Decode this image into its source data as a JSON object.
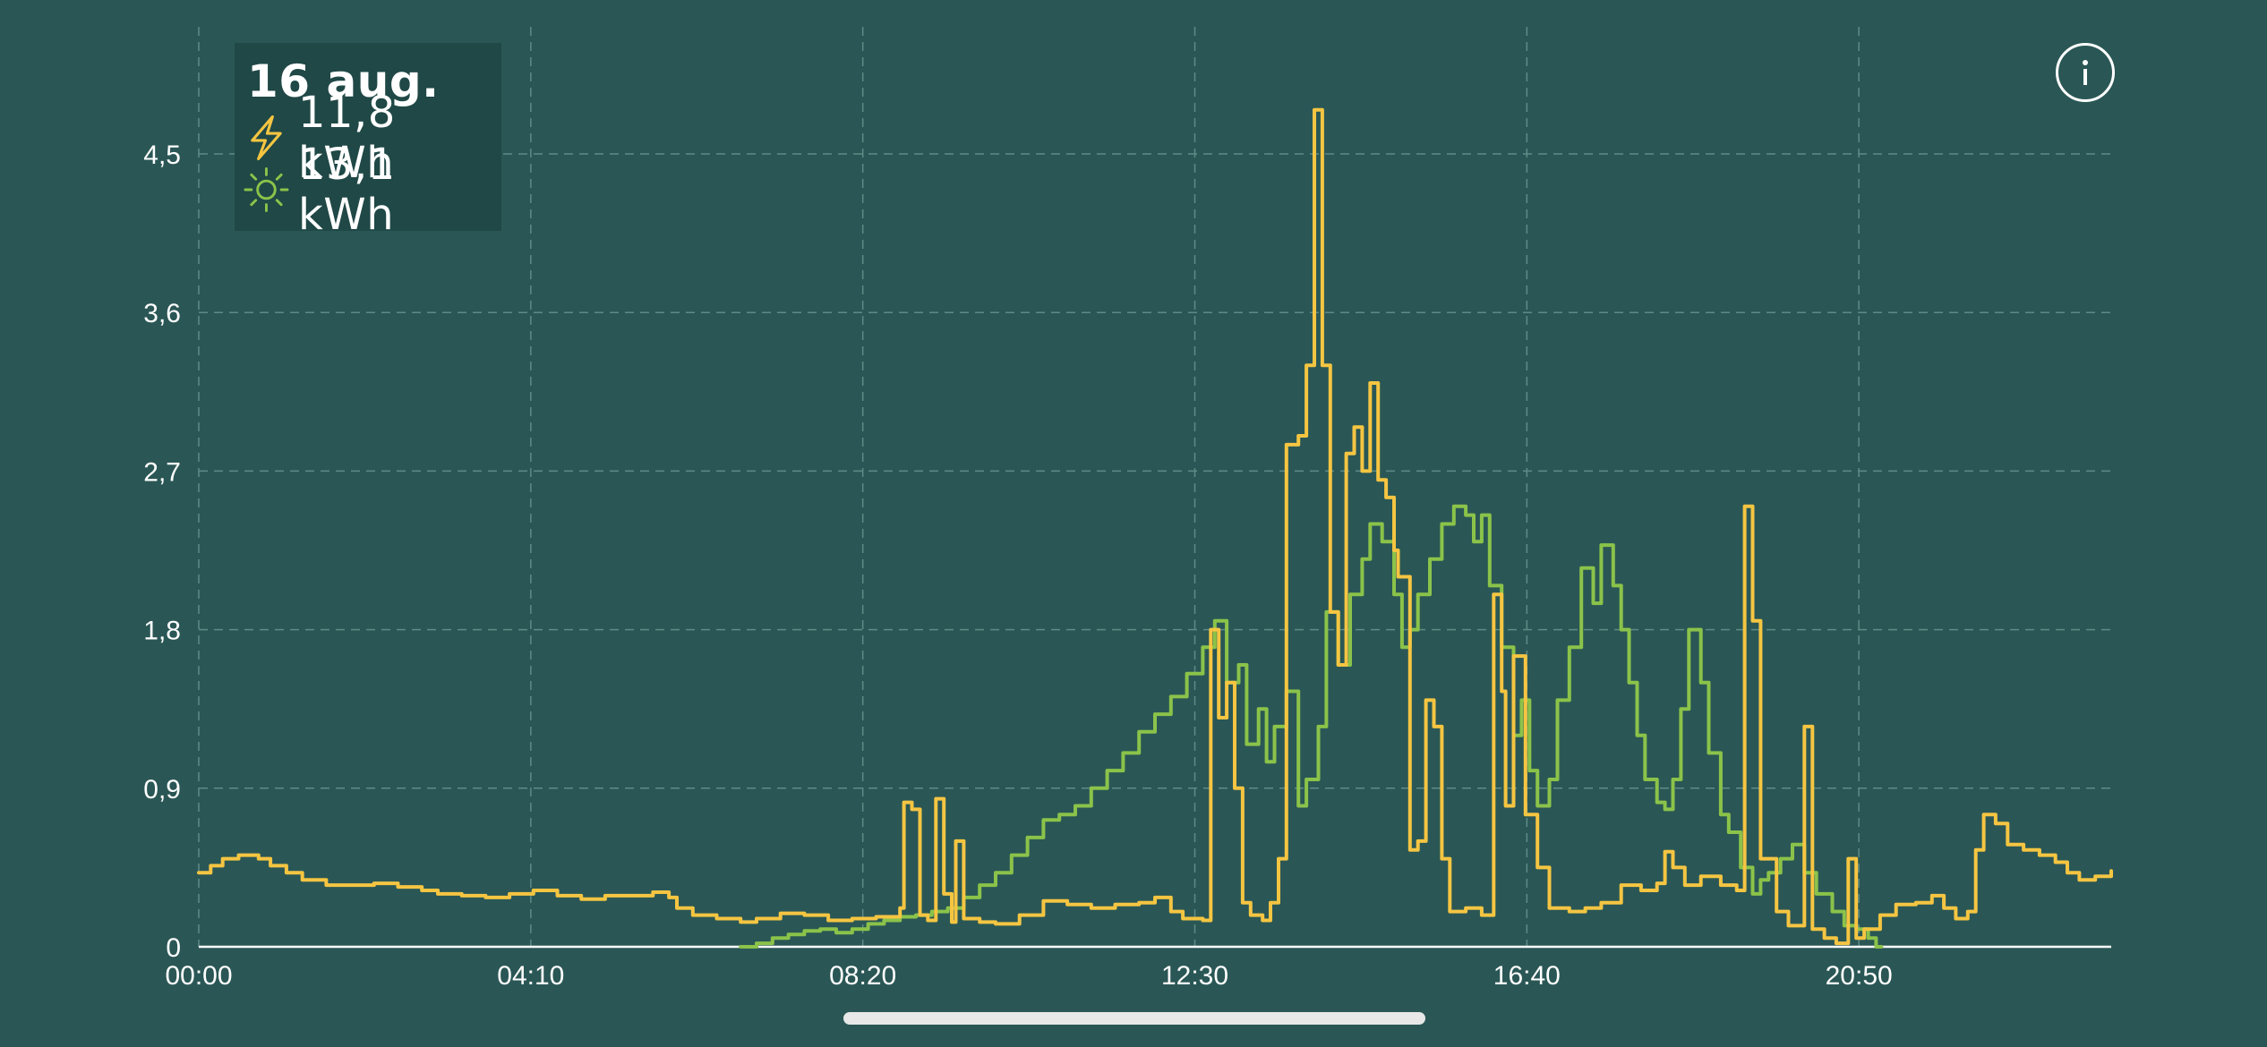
{
  "legend": {
    "date": "16 aug.",
    "consumption_value": "11,8 kWh",
    "production_value": "13,1 kWh",
    "consumption_icon": "lightning-bolt-icon",
    "production_icon": "sun-icon"
  },
  "info_button": {
    "icon": "info-icon",
    "glyph": "i"
  },
  "colors": {
    "background": "#2a5755",
    "legend_background": "#1f4846",
    "consumption": "#f5c542",
    "production": "#8bc34a",
    "grid": "#5f8a86",
    "text": "#ffffff"
  },
  "chart_data": {
    "type": "line",
    "step": true,
    "x_unit": "time of day (hours)",
    "y_unit": "kW",
    "xlim": [
      0,
      24
    ],
    "ylim": [
      0,
      5.2
    ],
    "x_ticks": [
      0,
      4.1667,
      8.3333,
      12.5,
      16.6667,
      20.8333
    ],
    "x_tick_labels": [
      "00:00",
      "04:10",
      "08:20",
      "12:30",
      "16:40",
      "20:50"
    ],
    "y_ticks": [
      0,
      0.9,
      1.8,
      2.7,
      3.6,
      4.5
    ],
    "y_tick_labels": [
      "0",
      "0,9",
      "1,8",
      "2,7",
      "3,6",
      "4,5"
    ],
    "grid": true,
    "legend_position": "top-left",
    "series": [
      {
        "key": "consumption",
        "color": "#f5c542",
        "points": [
          [
            0.0,
            0.42
          ],
          [
            0.15,
            0.46
          ],
          [
            0.3,
            0.5
          ],
          [
            0.5,
            0.52
          ],
          [
            0.75,
            0.5
          ],
          [
            0.9,
            0.46
          ],
          [
            1.1,
            0.42
          ],
          [
            1.3,
            0.38
          ],
          [
            1.6,
            0.35
          ],
          [
            1.9,
            0.35
          ],
          [
            2.2,
            0.36
          ],
          [
            2.5,
            0.34
          ],
          [
            2.8,
            0.32
          ],
          [
            3.0,
            0.3
          ],
          [
            3.3,
            0.29
          ],
          [
            3.6,
            0.28
          ],
          [
            3.9,
            0.3
          ],
          [
            4.2,
            0.32
          ],
          [
            4.5,
            0.29
          ],
          [
            4.8,
            0.27
          ],
          [
            5.1,
            0.29
          ],
          [
            5.4,
            0.29
          ],
          [
            5.7,
            0.31
          ],
          [
            5.9,
            0.28
          ],
          [
            6.0,
            0.22
          ],
          [
            6.2,
            0.18
          ],
          [
            6.5,
            0.16
          ],
          [
            6.8,
            0.14
          ],
          [
            7.0,
            0.16
          ],
          [
            7.3,
            0.19
          ],
          [
            7.6,
            0.18
          ],
          [
            7.9,
            0.15
          ],
          [
            8.2,
            0.16
          ],
          [
            8.5,
            0.17
          ],
          [
            8.8,
            0.22
          ],
          [
            8.85,
            0.82
          ],
          [
            8.95,
            0.78
          ],
          [
            9.05,
            0.18
          ],
          [
            9.15,
            0.15
          ],
          [
            9.25,
            0.84
          ],
          [
            9.35,
            0.3
          ],
          [
            9.45,
            0.14
          ],
          [
            9.5,
            0.6
          ],
          [
            9.6,
            0.16
          ],
          [
            9.8,
            0.14
          ],
          [
            10.0,
            0.13
          ],
          [
            10.3,
            0.18
          ],
          [
            10.6,
            0.26
          ],
          [
            10.9,
            0.24
          ],
          [
            11.2,
            0.22
          ],
          [
            11.5,
            0.24
          ],
          [
            11.8,
            0.25
          ],
          [
            12.0,
            0.28
          ],
          [
            12.2,
            0.2
          ],
          [
            12.35,
            0.16
          ],
          [
            12.6,
            0.15
          ],
          [
            12.7,
            1.8
          ],
          [
            12.8,
            1.3
          ],
          [
            12.9,
            1.5
          ],
          [
            13.0,
            0.9
          ],
          [
            13.1,
            0.25
          ],
          [
            13.2,
            0.18
          ],
          [
            13.35,
            0.15
          ],
          [
            13.45,
            0.25
          ],
          [
            13.55,
            0.5
          ],
          [
            13.65,
            2.85
          ],
          [
            13.8,
            2.9
          ],
          [
            13.9,
            3.3
          ],
          [
            14.0,
            4.75
          ],
          [
            14.1,
            3.3
          ],
          [
            14.2,
            1.9
          ],
          [
            14.3,
            1.6
          ],
          [
            14.4,
            2.8
          ],
          [
            14.5,
            2.95
          ],
          [
            14.6,
            2.7
          ],
          [
            14.7,
            3.2
          ],
          [
            14.8,
            2.65
          ],
          [
            14.9,
            2.55
          ],
          [
            15.0,
            2.25
          ],
          [
            15.05,
            2.1
          ],
          [
            15.2,
            0.55
          ],
          [
            15.3,
            0.6
          ],
          [
            15.4,
            1.4
          ],
          [
            15.5,
            1.25
          ],
          [
            15.6,
            0.5
          ],
          [
            15.7,
            0.2
          ],
          [
            15.9,
            0.22
          ],
          [
            16.1,
            0.18
          ],
          [
            16.25,
            2.0
          ],
          [
            16.35,
            1.45
          ],
          [
            16.4,
            0.8
          ],
          [
            16.5,
            1.65
          ],
          [
            16.65,
            0.75
          ],
          [
            16.8,
            0.45
          ],
          [
            16.95,
            0.22
          ],
          [
            17.2,
            0.2
          ],
          [
            17.4,
            0.22
          ],
          [
            17.6,
            0.25
          ],
          [
            17.85,
            0.35
          ],
          [
            18.1,
            0.32
          ],
          [
            18.3,
            0.36
          ],
          [
            18.4,
            0.54
          ],
          [
            18.5,
            0.45
          ],
          [
            18.65,
            0.35
          ],
          [
            18.85,
            0.4
          ],
          [
            19.1,
            0.35
          ],
          [
            19.3,
            0.32
          ],
          [
            19.4,
            2.5
          ],
          [
            19.5,
            1.85
          ],
          [
            19.6,
            0.5
          ],
          [
            19.8,
            0.2
          ],
          [
            19.95,
            0.12
          ],
          [
            20.15,
            1.25
          ],
          [
            20.25,
            0.1
          ],
          [
            20.4,
            0.05
          ],
          [
            20.55,
            0.02
          ],
          [
            20.7,
            0.5
          ],
          [
            20.8,
            0.05
          ],
          [
            20.9,
            0.1
          ],
          [
            21.1,
            0.18
          ],
          [
            21.3,
            0.24
          ],
          [
            21.55,
            0.25
          ],
          [
            21.75,
            0.29
          ],
          [
            21.9,
            0.22
          ],
          [
            22.05,
            0.16
          ],
          [
            22.2,
            0.2
          ],
          [
            22.3,
            0.55
          ],
          [
            22.4,
            0.75
          ],
          [
            22.55,
            0.7
          ],
          [
            22.7,
            0.58
          ],
          [
            22.9,
            0.55
          ],
          [
            23.1,
            0.52
          ],
          [
            23.3,
            0.48
          ],
          [
            23.45,
            0.42
          ],
          [
            23.6,
            0.38
          ],
          [
            23.8,
            0.4
          ],
          [
            24.0,
            0.43
          ]
        ]
      },
      {
        "key": "production",
        "color": "#8bc34a",
        "points": [
          [
            6.8,
            0.0
          ],
          [
            7.0,
            0.02
          ],
          [
            7.2,
            0.05
          ],
          [
            7.4,
            0.07
          ],
          [
            7.6,
            0.09
          ],
          [
            7.8,
            0.1
          ],
          [
            8.0,
            0.08
          ],
          [
            8.2,
            0.1
          ],
          [
            8.4,
            0.13
          ],
          [
            8.6,
            0.15
          ],
          [
            8.8,
            0.17
          ],
          [
            9.0,
            0.18
          ],
          [
            9.2,
            0.2
          ],
          [
            9.4,
            0.22
          ],
          [
            9.6,
            0.28
          ],
          [
            9.8,
            0.35
          ],
          [
            10.0,
            0.42
          ],
          [
            10.2,
            0.52
          ],
          [
            10.4,
            0.62
          ],
          [
            10.6,
            0.72
          ],
          [
            10.8,
            0.75
          ],
          [
            11.0,
            0.8
          ],
          [
            11.2,
            0.9
          ],
          [
            11.4,
            1.0
          ],
          [
            11.6,
            1.1
          ],
          [
            11.8,
            1.22
          ],
          [
            12.0,
            1.32
          ],
          [
            12.2,
            1.42
          ],
          [
            12.4,
            1.55
          ],
          [
            12.6,
            1.7
          ],
          [
            12.75,
            1.85
          ],
          [
            12.9,
            1.5
          ],
          [
            13.05,
            1.6
          ],
          [
            13.15,
            1.15
          ],
          [
            13.3,
            1.35
          ],
          [
            13.4,
            1.05
          ],
          [
            13.5,
            1.25
          ],
          [
            13.65,
            1.45
          ],
          [
            13.8,
            0.8
          ],
          [
            13.9,
            0.95
          ],
          [
            14.05,
            1.25
          ],
          [
            14.15,
            1.9
          ],
          [
            14.3,
            1.6
          ],
          [
            14.45,
            2.0
          ],
          [
            14.6,
            2.2
          ],
          [
            14.7,
            2.4
          ],
          [
            14.85,
            2.3
          ],
          [
            15.0,
            2.0
          ],
          [
            15.1,
            1.7
          ],
          [
            15.2,
            1.8
          ],
          [
            15.3,
            2.0
          ],
          [
            15.45,
            2.2
          ],
          [
            15.6,
            2.4
          ],
          [
            15.75,
            2.5
          ],
          [
            15.9,
            2.45
          ],
          [
            16.0,
            2.3
          ],
          [
            16.1,
            2.45
          ],
          [
            16.2,
            2.05
          ],
          [
            16.35,
            1.7
          ],
          [
            16.5,
            1.2
          ],
          [
            16.6,
            1.4
          ],
          [
            16.7,
            1.0
          ],
          [
            16.8,
            0.8
          ],
          [
            16.95,
            0.95
          ],
          [
            17.05,
            1.4
          ],
          [
            17.2,
            1.7
          ],
          [
            17.35,
            2.15
          ],
          [
            17.5,
            1.95
          ],
          [
            17.6,
            2.28
          ],
          [
            17.75,
            2.05
          ],
          [
            17.85,
            1.8
          ],
          [
            17.95,
            1.5
          ],
          [
            18.05,
            1.2
          ],
          [
            18.15,
            0.95
          ],
          [
            18.3,
            0.82
          ],
          [
            18.4,
            0.78
          ],
          [
            18.5,
            0.95
          ],
          [
            18.6,
            1.35
          ],
          [
            18.7,
            1.8
          ],
          [
            18.85,
            1.5
          ],
          [
            18.95,
            1.1
          ],
          [
            19.1,
            0.75
          ],
          [
            19.2,
            0.65
          ],
          [
            19.35,
            0.45
          ],
          [
            19.5,
            0.3
          ],
          [
            19.6,
            0.38
          ],
          [
            19.7,
            0.42
          ],
          [
            19.85,
            0.5
          ],
          [
            20.0,
            0.58
          ],
          [
            20.15,
            0.42
          ],
          [
            20.3,
            0.3
          ],
          [
            20.5,
            0.2
          ],
          [
            20.65,
            0.12
          ],
          [
            20.8,
            0.1
          ],
          [
            20.95,
            0.05
          ],
          [
            21.05,
            0.0
          ]
        ]
      }
    ]
  }
}
